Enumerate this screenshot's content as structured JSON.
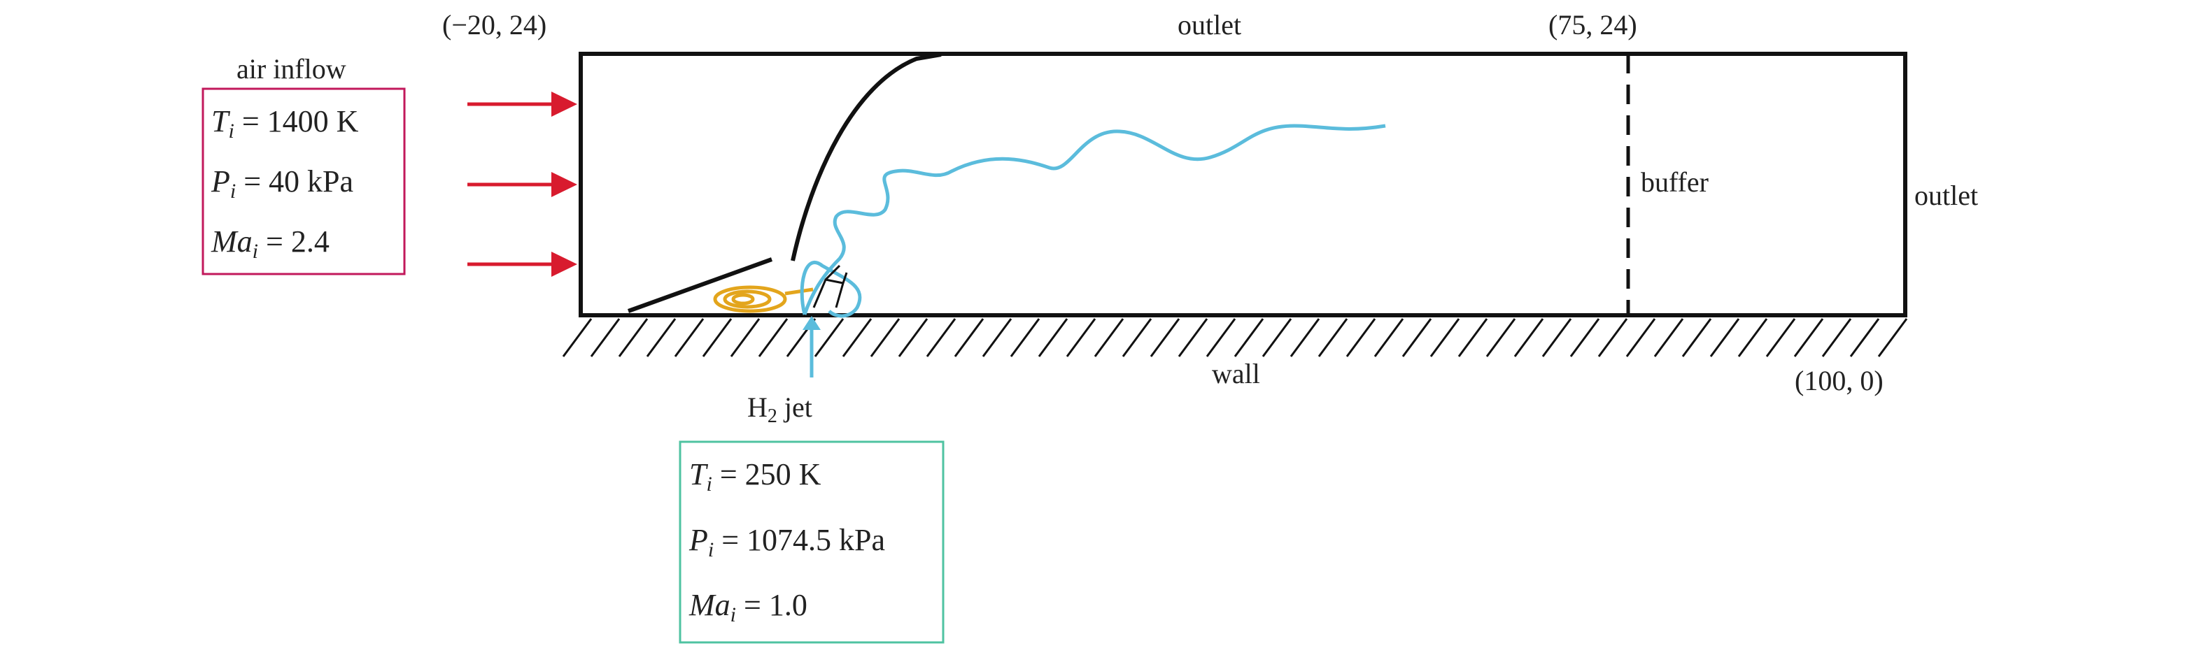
{
  "labels": {
    "top_left_coord": "(−20, 24)",
    "top_right_coord": "(75, 24)",
    "bottom_right_coord": "(100, 0)",
    "top_outlet": "outlet",
    "right_outlet": "outlet",
    "buffer": "buffer",
    "wall": "wall",
    "air_inflow": "air inflow",
    "jet_label_main": "H",
    "jet_label_sub": "2",
    "jet_label_rest": " jet"
  },
  "air_params": [
    {
      "sym": "T",
      "sub": "i",
      "val": " = 1400 K"
    },
    {
      "sym": "P",
      "sub": "i",
      "val": " = 40 kPa"
    },
    {
      "sym": "Ma",
      "sub": "i",
      "val": " = 2.4"
    }
  ],
  "jet_params": [
    {
      "sym": "T",
      "sub": "i",
      "val": " = 250 K"
    },
    {
      "sym": "P",
      "sub": "i",
      "val": " = 1074.5 kPa"
    },
    {
      "sym": "Ma",
      "sub": "i",
      "val": " = 1.0"
    }
  ],
  "colors": {
    "air_box": "#c2185b",
    "jet_box": "#4fc3a1",
    "arrows": "#d81b2e",
    "jet": "#5bbcdc",
    "vortex": "#e3a51c",
    "lines": "#111111"
  }
}
